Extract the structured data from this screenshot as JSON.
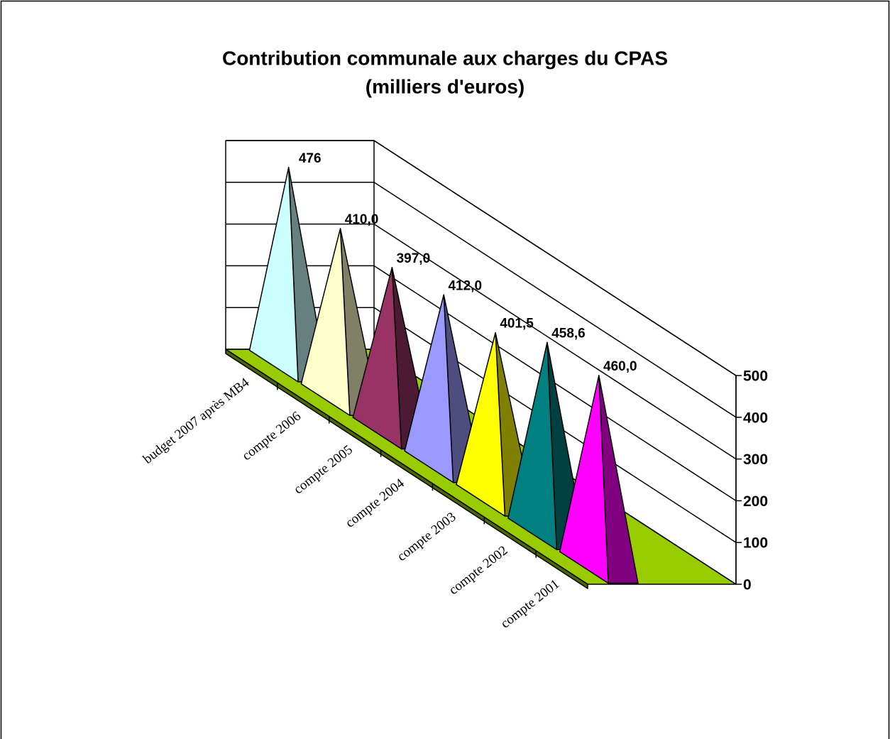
{
  "chart_data": {
    "type": "pyramid3d",
    "title": "Contribution communale aux charges du CPAS",
    "subtitle": "(milliers d'euros)",
    "categories": [
      "budget 2007 après MB4",
      "compte 2006",
      "compte 2005",
      "compte 2004",
      "compte 2003",
      "compte 2002",
      "compte 2001"
    ],
    "values": [
      476,
      410,
      397,
      412,
      401.5,
      458.6,
      460
    ],
    "value_labels": [
      "476",
      "410,0",
      "397,0",
      "412,0",
      "401,5",
      "458,6",
      "460,0"
    ],
    "colors": [
      "#ccffff",
      "#ffffcc",
      "#993366",
      "#9999ff",
      "#ffff00",
      "#008080",
      "#ff00ff"
    ],
    "floor_color": "#99cc00",
    "ylim": [
      0,
      500
    ],
    "yticks": [
      0,
      100,
      200,
      300,
      400,
      500
    ],
    "grid": true
  }
}
